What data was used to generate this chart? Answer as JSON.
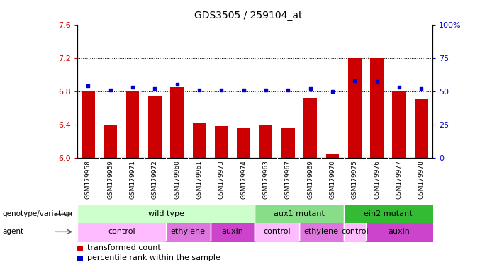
{
  "title": "GDS3505 / 259104_at",
  "samples": [
    "GSM179958",
    "GSM179959",
    "GSM179971",
    "GSM179972",
    "GSM179960",
    "GSM179961",
    "GSM179973",
    "GSM179974",
    "GSM179963",
    "GSM179967",
    "GSM179969",
    "GSM179970",
    "GSM179975",
    "GSM179976",
    "GSM179977",
    "GSM179978"
  ],
  "bar_values": [
    6.8,
    6.4,
    6.8,
    6.75,
    6.85,
    6.42,
    6.38,
    6.36,
    6.39,
    6.36,
    6.72,
    6.05,
    7.2,
    7.2,
    6.8,
    6.7
  ],
  "dot_values": [
    54,
    51,
    53,
    52,
    55,
    51,
    51,
    51,
    51,
    51,
    52,
    50,
    58,
    57,
    53,
    52
  ],
  "bar_bottom": 6.0,
  "ylim": [
    6.0,
    7.6
  ],
  "yticks_left": [
    6.0,
    6.4,
    6.8,
    7.2,
    7.6
  ],
  "yticks_right": [
    0,
    25,
    50,
    75,
    100
  ],
  "right_ylabels": [
    "0",
    "25",
    "50",
    "75",
    "100%"
  ],
  "grid_lines": [
    6.4,
    6.8,
    7.2
  ],
  "bar_color": "#cc0000",
  "dot_color": "#0000cc",
  "left_tick_color": "#cc0000",
  "right_tick_color": "#0000cc",
  "xtick_bg_color": "#d0d0d0",
  "genotype_groups": [
    {
      "label": "wild type",
      "start": 0,
      "end": 7,
      "color": "#ccffcc"
    },
    {
      "label": "aux1 mutant",
      "start": 8,
      "end": 11,
      "color": "#88dd88"
    },
    {
      "label": "ein2 mutant",
      "start": 12,
      "end": 15,
      "color": "#33bb33"
    }
  ],
  "agent_groups": [
    {
      "label": "control",
      "start": 0,
      "end": 3,
      "color": "#ffbbff"
    },
    {
      "label": "ethylene",
      "start": 4,
      "end": 5,
      "color": "#dd77dd"
    },
    {
      "label": "auxin",
      "start": 6,
      "end": 7,
      "color": "#cc44cc"
    },
    {
      "label": "control",
      "start": 8,
      "end": 9,
      "color": "#ffbbff"
    },
    {
      "label": "ethylene",
      "start": 10,
      "end": 11,
      "color": "#dd77dd"
    },
    {
      "label": "control",
      "start": 12,
      "end": 12,
      "color": "#ffbbff"
    },
    {
      "label": "auxin",
      "start": 13,
      "end": 15,
      "color": "#cc44cc"
    }
  ],
  "legend_bar_label": "transformed count",
  "legend_dot_label": "percentile rank within the sample",
  "genotype_label": "genotype/variation",
  "agent_label": "agent"
}
